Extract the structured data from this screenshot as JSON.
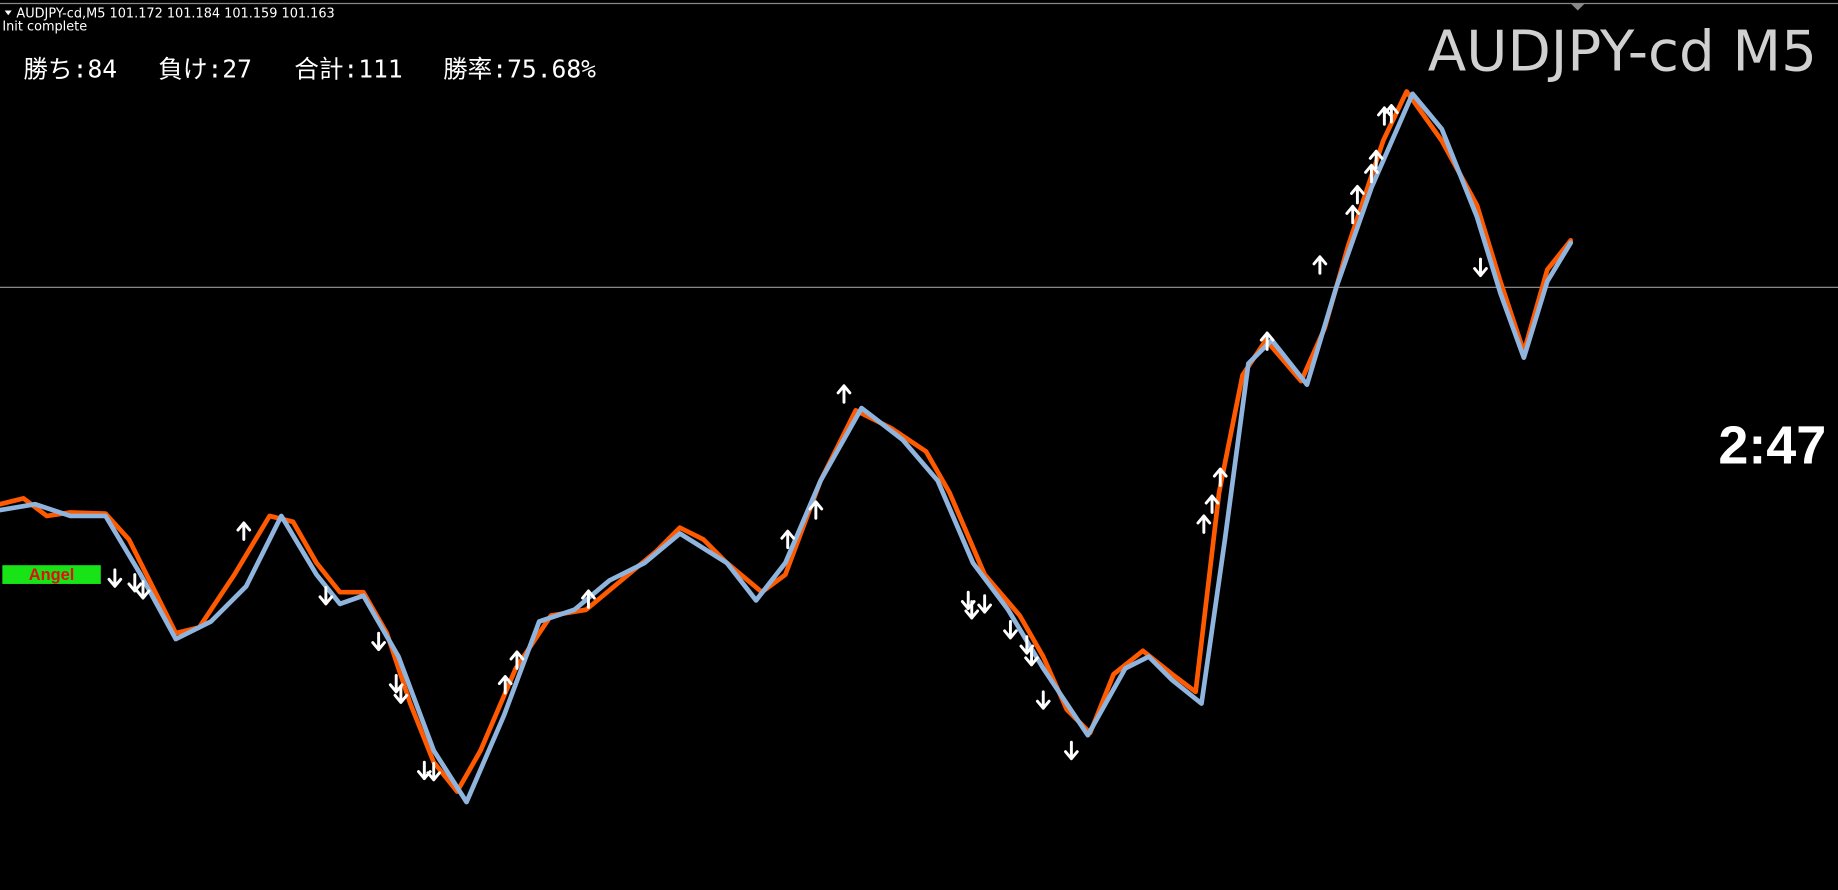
{
  "header": {
    "symbol_line": "AUDJPY-cd,M5  101.172 101.184 101.159 101.163",
    "status": "Init complete"
  },
  "stats": [
    "勝ち:84",
    "負け:27",
    "合計:111",
    "勝率:75.68%"
  ],
  "watermark": "AUDJPY-cd M5",
  "timer": "2:47",
  "badge": "Angel"
}
